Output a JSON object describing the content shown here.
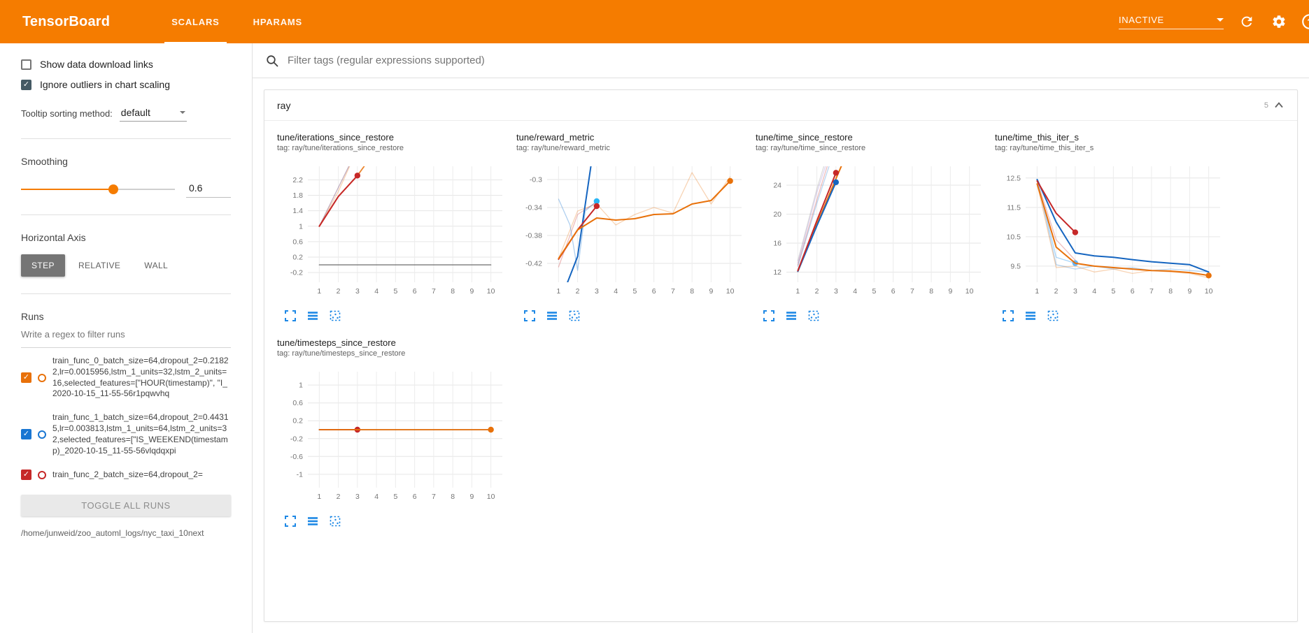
{
  "header": {
    "title": "TensorBoard",
    "tabs": [
      {
        "label": "SCALARS",
        "active": true
      },
      {
        "label": "HPARAMS",
        "active": false
      }
    ],
    "status_dropdown": "INACTIVE",
    "icons": [
      "refresh-icon",
      "settings-icon",
      "help-icon"
    ]
  },
  "sidebar": {
    "checkboxes": [
      {
        "label": "Show data download links",
        "checked": false
      },
      {
        "label": "Ignore outliers in chart scaling",
        "checked": true
      }
    ],
    "tooltip_sorting": {
      "label": "Tooltip sorting method:",
      "value": "default"
    },
    "smoothing": {
      "label": "Smoothing",
      "value": "0.6",
      "fraction": 0.6
    },
    "horizontal_axis": {
      "label": "Horizontal Axis",
      "options": [
        "STEP",
        "RELATIVE",
        "WALL"
      ],
      "selected": "STEP"
    },
    "runs": {
      "label": "Runs",
      "filter_placeholder": "Write a regex to filter runs",
      "items": [
        {
          "name": "train_func_0_batch_size=64,dropout_2=0.21822,lr=0.0015956,lstm_1_units=32,lstm_2_units=16,selected_features=[\"HOUR(timestamp)\", \"I_2020-10-15_11-55-56r1pqwvhq",
          "color": "#e8710a",
          "checked": true
        },
        {
          "name": "train_func_1_batch_size=64,dropout_2=0.44315,lr=0.003813,lstm_1_units=64,lstm_2_units=32,selected_features=[\"IS_WEEKEND(timestamp)_2020-10-15_11-55-56vlqdqxpi",
          "color": "#1976d2",
          "checked": true
        },
        {
          "name": "train_func_2_batch_size=64,dropout_2=",
          "color": "#c62828",
          "checked": true
        }
      ],
      "toggle_all_label": "TOGGLE ALL RUNS",
      "log_path": "/home/junweid/zoo_automl_logs/nyc_taxi_10next"
    }
  },
  "main": {
    "filter_placeholder": "Filter tags (regular expressions supported)",
    "card": {
      "title": "ray",
      "count": "5",
      "chart_toolbar_icons": [
        "expand-chart-icon",
        "toggle-runs-icon",
        "pin-chart-icon"
      ]
    }
  },
  "chart_data": [
    {
      "type": "line",
      "title": "tune/iterations_since_restore",
      "tag": "tag: ray/tune/iterations_since_restore",
      "xlim": [
        0.4,
        10.6
      ],
      "ylim": [
        -0.45,
        2.55
      ],
      "xticks": [
        1,
        2,
        3,
        4,
        5,
        6,
        7,
        8,
        9,
        10
      ],
      "yticks": [
        -0.2,
        0.2,
        0.6,
        1,
        1.4,
        1.8,
        2.2
      ],
      "series": [
        {
          "name": "train_func_0 raw",
          "color": "#e8710a",
          "opacity": 0.3,
          "width": 1.3,
          "x": [
            1,
            2,
            3
          ],
          "y": [
            1,
            1.9,
            3
          ]
        },
        {
          "name": "train_func_2 raw",
          "color": "#c62828",
          "opacity": 0.3,
          "width": 1.3,
          "x": [
            1,
            2,
            3
          ],
          "y": [
            1,
            2,
            3
          ]
        },
        {
          "name": "train_func_1 raw",
          "color": "#1976d2",
          "opacity": 0.2,
          "width": 1.3,
          "x": [
            1,
            2,
            3
          ],
          "y": [
            1,
            2,
            3
          ]
        },
        {
          "name": "train_func_0 smoothed",
          "color": "#e8710a",
          "opacity": 0.85,
          "width": 1.8,
          "x": [
            1,
            2,
            3,
            4,
            5
          ],
          "y": [
            1,
            1.77,
            2.31,
            2.99,
            3.8
          ]
        },
        {
          "name": "train_func_2 smoothed",
          "color": "#c62828",
          "opacity": 1,
          "width": 2,
          "x": [
            1,
            2,
            3
          ],
          "y": [
            1,
            1.77,
            2.31
          ],
          "end_dot": true
        },
        {
          "name": "baseline run",
          "color": "#616161",
          "opacity": 0.85,
          "width": 1.4,
          "x": [
            1,
            10
          ],
          "y": [
            0,
            0
          ]
        }
      ]
    },
    {
      "type": "line",
      "title": "tune/reward_metric",
      "tag": "tag: ray/tune/reward_metric",
      "xlim": [
        0.4,
        10.6
      ],
      "ylim": [
        -0.447,
        -0.281
      ],
      "xticks": [
        1,
        2,
        3,
        4,
        5,
        6,
        7,
        8,
        9,
        10
      ],
      "yticks": [
        -0.42,
        -0.38,
        -0.34,
        -0.3
      ],
      "series": [
        {
          "name": "train_func_0 raw",
          "color": "#e8710a",
          "opacity": 0.3,
          "width": 1.3,
          "x": [
            1,
            2,
            3,
            4,
            5,
            6,
            7,
            8,
            9,
            10
          ],
          "y": [
            -0.413,
            -0.345,
            -0.335,
            -0.365,
            -0.35,
            -0.34,
            -0.348,
            -0.29,
            -0.335,
            -0.296
          ]
        },
        {
          "name": "train_func_2 raw",
          "color": "#c62828",
          "opacity": 0.3,
          "width": 1.3,
          "x": [
            1,
            2,
            3
          ],
          "y": [
            -0.425,
            -0.35,
            -0.332
          ]
        },
        {
          "name": "train_func_1 raw",
          "color": "#1976d2",
          "opacity": 0.35,
          "width": 1.3,
          "x": [
            1,
            1.6,
            2,
            2.4,
            3
          ],
          "y": [
            -0.328,
            -0.365,
            -0.43,
            -0.345,
            -0.331
          ],
          "end_dot": true,
          "dot_color": "#29b6f6"
        },
        {
          "name": "train_func_1 smoothed",
          "color": "#1565c0",
          "opacity": 1,
          "width": 2,
          "x": [
            1,
            2,
            2.7
          ],
          "y": [
            -0.48,
            -0.41,
            -0.28
          ]
        },
        {
          "name": "train_func_2 smoothed",
          "color": "#c62828",
          "opacity": 1,
          "width": 2,
          "x": [
            1,
            2,
            3
          ],
          "y": [
            -0.414,
            -0.372,
            -0.338
          ],
          "end_dot": true
        },
        {
          "name": "train_func_0 smoothed",
          "color": "#e8710a",
          "opacity": 1,
          "width": 2,
          "x": [
            1,
            2,
            3,
            4,
            5,
            6,
            7,
            8,
            9,
            10
          ],
          "y": [
            -0.413,
            -0.372,
            -0.355,
            -0.358,
            -0.356,
            -0.35,
            -0.349,
            -0.335,
            -0.33,
            -0.302
          ],
          "end_dot": true
        }
      ]
    },
    {
      "type": "line",
      "title": "tune/time_since_restore",
      "tag": "tag: ray/tune/time_since_restore",
      "xlim": [
        0.4,
        10.6
      ],
      "ylim": [
        10.6,
        26.6
      ],
      "xticks": [
        1,
        2,
        3,
        4,
        5,
        6,
        7,
        8,
        9,
        10
      ],
      "yticks": [
        12,
        16,
        20,
        24
      ],
      "series": [
        {
          "name": "raw a",
          "color": "#9e9e9e",
          "opacity": 0.35,
          "width": 1.3,
          "x": [
            1,
            2,
            3
          ],
          "y": [
            13.6,
            23.5,
            32
          ]
        },
        {
          "name": "train_func_2 raw",
          "color": "#c62828",
          "opacity": 0.3,
          "width": 1.3,
          "x": [
            1,
            2,
            3
          ],
          "y": [
            13,
            22,
            30.5
          ]
        },
        {
          "name": "train_func_1 raw",
          "color": "#1976d2",
          "opacity": 0.3,
          "width": 1.3,
          "x": [
            1,
            2,
            3
          ],
          "y": [
            12.8,
            21.5,
            29.5
          ]
        },
        {
          "name": "raw b",
          "color": "#7e57c2",
          "opacity": 0.25,
          "width": 1.3,
          "x": [
            1,
            2,
            3
          ],
          "y": [
            13.3,
            23,
            31
          ]
        },
        {
          "name": "train_func_0 smoothed",
          "color": "#e8710a",
          "opacity": 1,
          "width": 2,
          "x": [
            1,
            2,
            3,
            4
          ],
          "y": [
            12.1,
            18.6,
            24.9,
            31
          ]
        },
        {
          "name": "train_func_1 smoothed",
          "color": "#1565c0",
          "opacity": 1,
          "width": 2,
          "x": [
            1,
            2,
            3
          ],
          "y": [
            12.1,
            18.4,
            24.4
          ],
          "end_dot": true
        },
        {
          "name": "train_func_2 smoothed",
          "color": "#c62828",
          "opacity": 1,
          "width": 2,
          "x": [
            1,
            2,
            3
          ],
          "y": [
            12.2,
            19.1,
            25.7
          ],
          "end_dot": true
        }
      ]
    },
    {
      "type": "line",
      "title": "tune/time_this_iter_s",
      "tag": "tag: ray/tune/time_this_iter_s",
      "xlim": [
        0.4,
        10.6
      ],
      "ylim": [
        8.95,
        12.9
      ],
      "xticks": [
        1,
        2,
        3,
        4,
        5,
        6,
        7,
        8,
        9,
        10
      ],
      "yticks": [
        9.5,
        10.5,
        11.5,
        12.5
      ],
      "series": [
        {
          "name": "train_func_1 raw",
          "color": "#1976d2",
          "opacity": 0.3,
          "width": 1.3,
          "x": [
            1,
            2,
            3,
            4,
            5,
            6,
            7,
            8,
            9,
            10
          ],
          "y": [
            12.45,
            9.55,
            9.4,
            9.5,
            9.4,
            9.45,
            9.35,
            9.4,
            9.35,
            9.3
          ]
        },
        {
          "name": "train_func_0 raw",
          "color": "#e8710a",
          "opacity": 0.3,
          "width": 1.3,
          "x": [
            1,
            2,
            3,
            4,
            5,
            6,
            7,
            8,
            9,
            10
          ],
          "y": [
            12.3,
            9.45,
            9.5,
            9.3,
            9.4,
            9.25,
            9.35,
            9.3,
            9.25,
            9.1
          ]
        },
        {
          "name": "train_func_2 raw",
          "color": "#c62828",
          "opacity": 0.3,
          "width": 1.3,
          "x": [
            1,
            2,
            3
          ],
          "y": [
            12.4,
            10.4,
            9.7
          ]
        },
        {
          "name": "train_func_1 raw end",
          "color": "#64b5f6",
          "opacity": 0.55,
          "width": 1.3,
          "x": [
            1,
            2,
            3
          ],
          "y": [
            12.45,
            9.8,
            9.6
          ],
          "end_dot": true
        },
        {
          "name": "train_func_1 smoothed",
          "color": "#1565c0",
          "opacity": 1,
          "width": 2,
          "x": [
            1,
            2,
            3,
            4,
            5,
            6,
            7,
            8,
            9,
            10
          ],
          "y": [
            12.45,
            11.0,
            9.95,
            9.85,
            9.8,
            9.72,
            9.65,
            9.6,
            9.55,
            9.3
          ]
        },
        {
          "name": "train_func_2 smoothed",
          "color": "#c62828",
          "opacity": 1,
          "width": 2,
          "x": [
            1,
            2,
            3
          ],
          "y": [
            12.4,
            11.3,
            10.65
          ],
          "end_dot": true
        },
        {
          "name": "train_func_0 smoothed",
          "color": "#e8710a",
          "opacity": 1,
          "width": 2,
          "x": [
            1,
            2,
            3,
            4,
            5,
            6,
            7,
            8,
            9,
            10
          ],
          "y": [
            12.3,
            10.15,
            9.6,
            9.5,
            9.45,
            9.4,
            9.35,
            9.33,
            9.28,
            9.18
          ],
          "end_dot": true
        }
      ]
    },
    {
      "type": "line",
      "title": "tune/timesteps_since_restore",
      "tag": "tag: ray/tune/timesteps_since_restore",
      "xlim": [
        0.4,
        10.6
      ],
      "ylim": [
        -1.3,
        1.3
      ],
      "xticks": [
        1,
        2,
        3,
        4,
        5,
        6,
        7,
        8,
        9,
        10
      ],
      "yticks": [
        -1,
        -0.6,
        -0.2,
        0.2,
        0.6,
        1
      ],
      "series": [
        {
          "name": "baseline run",
          "color": "#757575",
          "opacity": 1,
          "width": 1.5,
          "x": [
            1,
            10
          ],
          "y": [
            0,
            0
          ]
        },
        {
          "name": "train_func_1 smoothed",
          "color": "#1565c0",
          "opacity": 1,
          "width": 1.8,
          "x": [
            1,
            3
          ],
          "y": [
            0,
            0
          ]
        },
        {
          "name": "train_func_2 smoothed",
          "color": "#c62828",
          "opacity": 1,
          "width": 1.8,
          "x": [
            1,
            3
          ],
          "y": [
            0,
            0
          ],
          "end_dot": true
        },
        {
          "name": "train_func_0 smoothed",
          "color": "#e8710a",
          "opacity": 1,
          "width": 1.8,
          "x": [
            1,
            10
          ],
          "y": [
            0,
            0
          ],
          "end_dot": true
        }
      ]
    }
  ]
}
